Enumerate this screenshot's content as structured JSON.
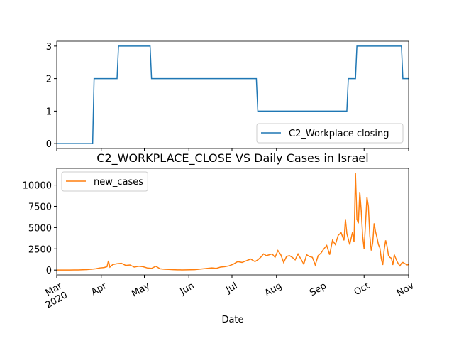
{
  "chart_data": [
    {
      "type": "line",
      "legend": "lower right",
      "series": [
        {
          "name": "C2_Workplace closing",
          "color": "#1f77b4",
          "x": [
            0,
            25,
            26,
            42,
            43,
            65,
            66,
            139,
            140,
            202,
            203,
            208,
            209,
            240,
            241,
            245
          ],
          "values": [
            0,
            0,
            2,
            2,
            3,
            3,
            2,
            2,
            1,
            1,
            2,
            2,
            3,
            3,
            2,
            2
          ]
        }
      ],
      "xlim": [
        0,
        245
      ],
      "xticks": [
        0,
        31,
        61,
        92,
        122,
        153,
        184,
        214,
        245
      ],
      "ylim": [
        -0.15,
        3.15
      ],
      "yticks": [
        0,
        1,
        2,
        3
      ]
    },
    {
      "type": "line",
      "title": "C2_WORKPLACE_CLOSE VS Daily Cases in Israel",
      "xlabel": "Date",
      "legend": "upper left",
      "series": [
        {
          "name": "new_cases",
          "color": "#ff7f0e",
          "x": [
            0,
            3,
            6,
            9,
            12,
            15,
            18,
            21,
            24,
            27,
            30,
            33,
            35,
            36,
            37,
            39,
            42,
            45,
            48,
            51,
            54,
            57,
            60,
            63,
            66,
            69,
            72,
            75,
            78,
            81,
            84,
            87,
            90,
            93,
            96,
            99,
            102,
            105,
            108,
            111,
            114,
            117,
            120,
            123,
            126,
            129,
            132,
            135,
            138,
            140,
            142,
            144,
            146,
            148,
            150,
            152,
            154,
            156,
            158,
            160,
            162,
            164,
            166,
            168,
            170,
            172,
            174,
            176,
            178,
            180,
            182,
            184,
            186,
            188,
            190,
            192,
            194,
            196,
            198,
            200,
            201,
            202,
            204,
            206,
            207,
            208,
            209,
            210,
            211,
            212,
            213,
            214,
            215,
            216,
            217,
            218,
            219,
            220,
            221,
            222,
            223,
            224,
            225,
            226,
            227,
            228,
            229,
            230,
            231,
            232,
            233,
            234,
            235,
            236,
            237,
            238,
            239,
            240,
            241,
            242,
            243,
            244,
            245
          ],
          "values": [
            0,
            0,
            2,
            5,
            10,
            20,
            40,
            60,
            100,
            150,
            250,
            300,
            400,
            1100,
            350,
            650,
            750,
            800,
            550,
            600,
            350,
            450,
            400,
            250,
            200,
            450,
            150,
            100,
            80,
            50,
            30,
            20,
            30,
            40,
            50,
            100,
            150,
            200,
            250,
            200,
            350,
            400,
            500,
            700,
            1000,
            900,
            1100,
            1300,
            1000,
            1200,
            1500,
            1900,
            1700,
            1800,
            1900,
            1500,
            2300,
            1800,
            900,
            1600,
            1700,
            1500,
            1200,
            1900,
            1300,
            700,
            1800,
            1600,
            1500,
            600,
            1700,
            2000,
            2500,
            2900,
            1800,
            3500,
            3000,
            4100,
            4400,
            3500,
            6000,
            4300,
            3000,
            4500,
            3300,
            11400,
            6000,
            5500,
            9200,
            7000,
            4000,
            2500,
            5500,
            8600,
            7500,
            4000,
            2300,
            3200,
            5500,
            4500,
            3800,
            3000,
            2600,
            1300,
            600,
            2400,
            3500,
            2800,
            1700,
            1500,
            1400,
            600,
            1800,
            1400,
            1000,
            700,
            500,
            800,
            900,
            800,
            700,
            600,
            650
          ]
        }
      ],
      "xlim": [
        0,
        245
      ],
      "xticks": [
        {
          "value": 0,
          "label": "Mar"
        },
        {
          "value": 31,
          "label": "Apr"
        },
        {
          "value": 61,
          "label": "May"
        },
        {
          "value": 92,
          "label": "Jun"
        },
        {
          "value": 122,
          "label": "Jul"
        },
        {
          "value": 153,
          "label": "Aug"
        },
        {
          "value": 184,
          "label": "Sep"
        },
        {
          "value": 214,
          "label": "Oct"
        },
        {
          "value": 245,
          "label": "Nov"
        }
      ],
      "xtick_year": "2020",
      "ylim": [
        -570,
        11970
      ],
      "yticks": [
        0,
        2500,
        5000,
        7500,
        10000
      ]
    }
  ]
}
